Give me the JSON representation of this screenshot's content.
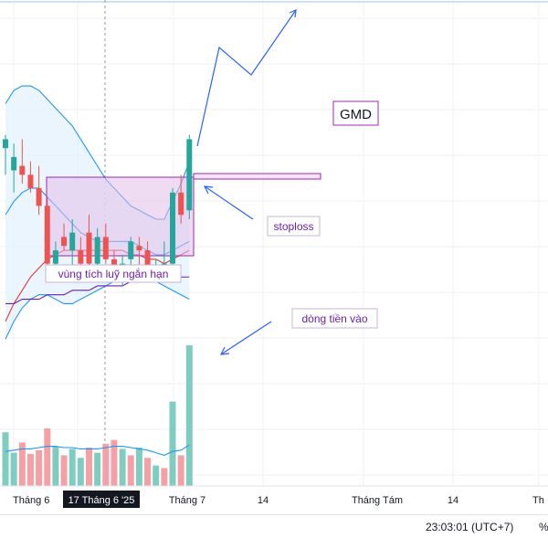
{
  "chart_data": {
    "type": "candlestick",
    "symbol": "GMD",
    "x_ticks": [
      "Tháng 6",
      "17 Tháng 6 '25",
      "Tháng 7",
      "14",
      "Tháng Tám",
      "14",
      "Th"
    ],
    "candles": [
      {
        "o": 62.9,
        "h": 63.2,
        "l": 62.3,
        "c": 63.1
      },
      {
        "o": 62.4,
        "h": 63.0,
        "l": 61.9,
        "c": 62.7
      },
      {
        "o": 62.5,
        "h": 63.1,
        "l": 62.1,
        "c": 62.3
      },
      {
        "o": 62.3,
        "h": 62.6,
        "l": 61.9,
        "c": 62.0
      },
      {
        "o": 62.0,
        "h": 62.5,
        "l": 61.4,
        "c": 61.6
      },
      {
        "o": 61.6,
        "h": 61.8,
        "l": 60.1,
        "c": 60.3
      },
      {
        "o": 60.3,
        "h": 60.8,
        "l": 59.9,
        "c": 60.6
      },
      {
        "o": 60.9,
        "h": 61.2,
        "l": 60.6,
        "c": 60.7
      },
      {
        "o": 60.6,
        "h": 61.3,
        "l": 60.1,
        "c": 61.0
      },
      {
        "o": 60.6,
        "h": 60.9,
        "l": 60.0,
        "c": 60.3
      },
      {
        "o": 61.0,
        "h": 61.4,
        "l": 60.2,
        "c": 60.3
      },
      {
        "o": 60.3,
        "h": 61.1,
        "l": 60.2,
        "c": 60.9
      },
      {
        "o": 60.9,
        "h": 61.2,
        "l": 60.3,
        "c": 60.4
      },
      {
        "o": 60.4,
        "h": 60.6,
        "l": 59.9,
        "c": 60.0
      },
      {
        "o": 60.0,
        "h": 60.5,
        "l": 59.8,
        "c": 60.3
      },
      {
        "o": 60.4,
        "h": 60.9,
        "l": 60.1,
        "c": 60.8
      },
      {
        "o": 60.7,
        "h": 60.9,
        "l": 60.2,
        "c": 60.6
      },
      {
        "o": 60.6,
        "h": 60.8,
        "l": 60.0,
        "c": 60.2
      },
      {
        "o": 60.1,
        "h": 60.4,
        "l": 59.9,
        "c": 60.2
      },
      {
        "o": 60.2,
        "h": 60.8,
        "l": 60.1,
        "c": 60.3
      },
      {
        "o": 60.3,
        "h": 62.0,
        "l": 60.2,
        "c": 61.9
      },
      {
        "o": 61.9,
        "h": 62.3,
        "l": 61.2,
        "c": 61.4
      },
      {
        "o": 61.5,
        "h": 63.2,
        "l": 61.3,
        "c": 63.1
      }
    ],
    "volumes": [
      {
        "v": 4.2,
        "up": true
      },
      {
        "v": 2.6,
        "up": true
      },
      {
        "v": 3.4,
        "up": false
      },
      {
        "v": 2.5,
        "up": false
      },
      {
        "v": 2.8,
        "up": false
      },
      {
        "v": 4.5,
        "up": false
      },
      {
        "v": 3.1,
        "up": true
      },
      {
        "v": 2.4,
        "up": false
      },
      {
        "v": 2.9,
        "up": true
      },
      {
        "v": 2.2,
        "up": true
      },
      {
        "v": 3.0,
        "up": false
      },
      {
        "v": 2.6,
        "up": true
      },
      {
        "v": 3.3,
        "up": false
      },
      {
        "v": 3.6,
        "up": false
      },
      {
        "v": 2.9,
        "up": true
      },
      {
        "v": 2.4,
        "up": false
      },
      {
        "v": 3.0,
        "up": true
      },
      {
        "v": 2.2,
        "up": false
      },
      {
        "v": 1.6,
        "up": true
      },
      {
        "v": 1.4,
        "up": false
      },
      {
        "v": 6.6,
        "up": true
      },
      {
        "v": 2.4,
        "up": false
      },
      {
        "v": 11.0,
        "up": true
      }
    ],
    "bollinger": {
      "upper": [
        63.9,
        64.2,
        64.3,
        64.3,
        64.2,
        64.0,
        63.8,
        63.6,
        63.4,
        63.1,
        62.8,
        62.5,
        62.2,
        62.0,
        61.8,
        61.6,
        61.5,
        61.4,
        61.3,
        61.3,
        61.7,
        62.1,
        62.6
      ],
      "middle": [
        61.4,
        61.7,
        61.9,
        62.0,
        62.0,
        61.8,
        61.6,
        61.4,
        61.2,
        61.0,
        60.9,
        60.8,
        60.8,
        60.8,
        60.8,
        60.8,
        60.7,
        60.6,
        60.5,
        60.5,
        60.6,
        60.7,
        60.8
      ],
      "lower": [
        58.6,
        59.0,
        59.3,
        59.5,
        59.6,
        59.6,
        59.5,
        59.4,
        59.4,
        59.5,
        59.6,
        59.7,
        59.8,
        59.9,
        60.0,
        60.0,
        60.0,
        59.9,
        59.9,
        59.8,
        59.7,
        59.6,
        59.5
      ]
    },
    "ma_red": [
      59.0,
      59.4,
      59.7,
      60.0,
      60.2,
      60.4,
      60.5,
      60.6,
      60.6,
      60.6,
      60.6,
      60.6,
      60.6,
      60.6,
      60.6,
      60.5,
      60.5,
      60.4,
      60.4,
      60.3,
      60.4,
      60.5,
      60.6
    ],
    "ma_purple": [
      59.4,
      59.4,
      59.5,
      59.5,
      59.5,
      59.6,
      59.6,
      59.6,
      59.7,
      59.7,
      59.7,
      59.8,
      59.8,
      59.8,
      59.8,
      59.9,
      59.9,
      59.9,
      59.9,
      60.0,
      60.0,
      60.0,
      60.0
    ],
    "vol_ma": [
      2.7,
      2.8,
      2.9,
      2.9,
      3.0,
      3.1,
      3.1,
      3.0,
      3.0,
      2.9,
      2.9,
      2.9,
      3.0,
      3.1,
      3.1,
      3.0,
      2.9,
      2.8,
      2.6,
      2.4,
      2.7,
      2.8,
      3.2
    ],
    "annotations": {
      "symbol_label": "GMD",
      "zone_label": "vùng tích luỹ ngắn hạn",
      "stop_label": "stoploss",
      "flow_label": "dòng tiền vào"
    },
    "colors": {
      "up": "#26a69a",
      "down": "#ef5350",
      "up_vol": "#7fcdc1",
      "down_vol": "#f5a0a5",
      "band": "#2196f3",
      "band_fill": "#e3f2fd",
      "ma_red": "#e53935",
      "ma_purple": "#6a1fb0",
      "zone": "#9c27b0",
      "arrow": "#2962ff"
    }
  },
  "status": {
    "clock": "23:03:01 (UTC+7)",
    "pct": "%"
  }
}
